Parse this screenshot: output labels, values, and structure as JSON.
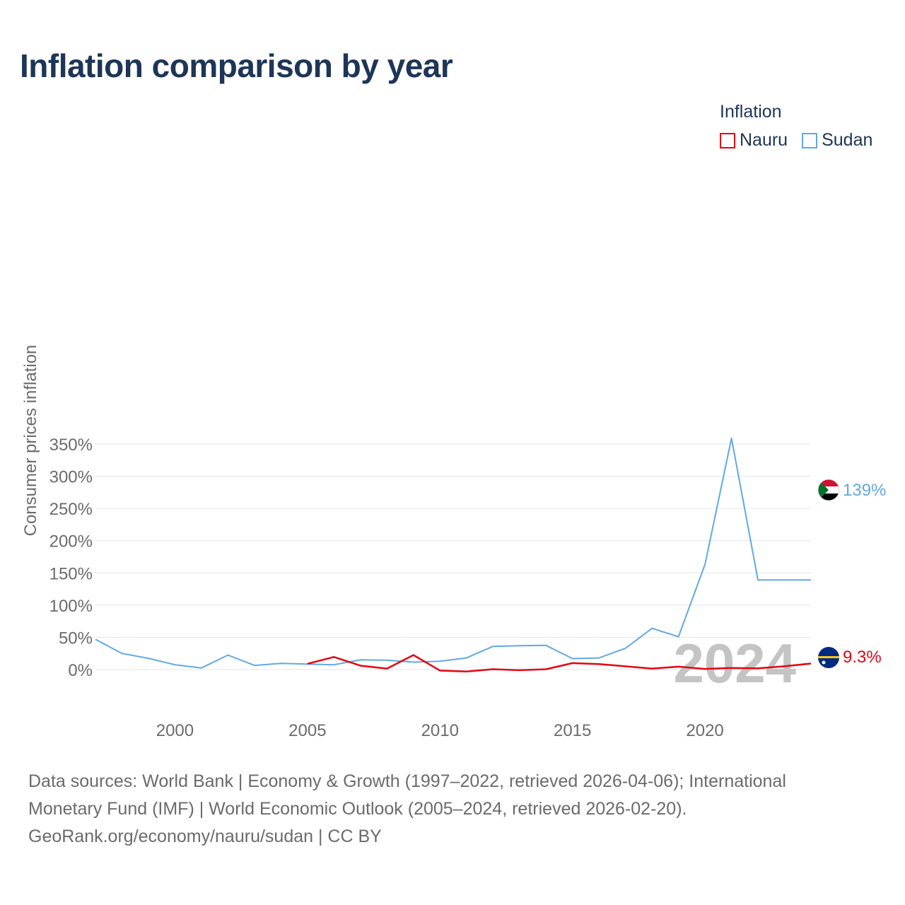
{
  "title": "Inflation comparison by year",
  "legend": {
    "title": "Inflation",
    "items": [
      {
        "label": "Nauru",
        "color": "#e30613"
      },
      {
        "label": "Sudan",
        "color": "#62a8e5"
      }
    ]
  },
  "chart_data": {
    "type": "line",
    "title": "Inflation comparison by year",
    "xlabel": "",
    "ylabel": "Consumer prices inflation",
    "xlim": [
      1997,
      2024
    ],
    "ylim": [
      -30,
      375
    ],
    "y_ticks": [
      0,
      50,
      100,
      150,
      200,
      250,
      300,
      350
    ],
    "y_tick_labels": [
      "0%",
      "50%",
      "100%",
      "150%",
      "200%",
      "250%",
      "300%",
      "350%"
    ],
    "x_ticks": [
      2000,
      2005,
      2010,
      2015,
      2020
    ],
    "x_tick_labels": [
      "2000",
      "2005",
      "2010",
      "2015",
      "2020"
    ],
    "grid": true,
    "legend_position": "top-right",
    "year_watermark": "2024",
    "series": [
      {
        "name": "Sudan",
        "color": "#62a8e5",
        "x": [
          1997,
          1998,
          1999,
          2000,
          2001,
          2002,
          2003,
          2004,
          2005,
          2006,
          2007,
          2008,
          2009,
          2010,
          2011,
          2012,
          2013,
          2014,
          2015,
          2016,
          2017,
          2018,
          2019,
          2020,
          2021,
          2022,
          2023,
          2024
        ],
        "values": [
          47,
          25,
          17.5,
          7.5,
          2.5,
          22.5,
          6.5,
          9.5,
          8.5,
          7.5,
          15,
          14.5,
          11.5,
          13,
          18,
          36,
          37,
          37.5,
          17,
          18,
          33,
          64,
          51,
          163,
          359,
          139,
          139,
          139
        ],
        "end_label": "139%"
      },
      {
        "name": "Nauru",
        "color": "#e30613",
        "x": [
          2005,
          2006,
          2007,
          2008,
          2009,
          2010,
          2011,
          2012,
          2013,
          2014,
          2015,
          2016,
          2017,
          2018,
          2019,
          2020,
          2021,
          2022,
          2023,
          2024
        ],
        "values": [
          9,
          19.5,
          6,
          1.5,
          22.5,
          -1.5,
          -3,
          0.5,
          -1,
          0.5,
          10,
          8.5,
          5,
          1.5,
          4.5,
          1,
          2.5,
          2,
          5,
          9.3
        ],
        "end_label": "9.3%"
      }
    ]
  },
  "footer": {
    "line1": "Data sources: World Bank | Economy & Growth (1997–2022, retrieved 2026-04-06); International",
    "line2": "Monetary Fund (IMF) | World Economic Outlook (2005–2024, retrieved 2026-02-20).",
    "line3": "GeoRank.org/economy/nauru/sudan | CC BY"
  }
}
